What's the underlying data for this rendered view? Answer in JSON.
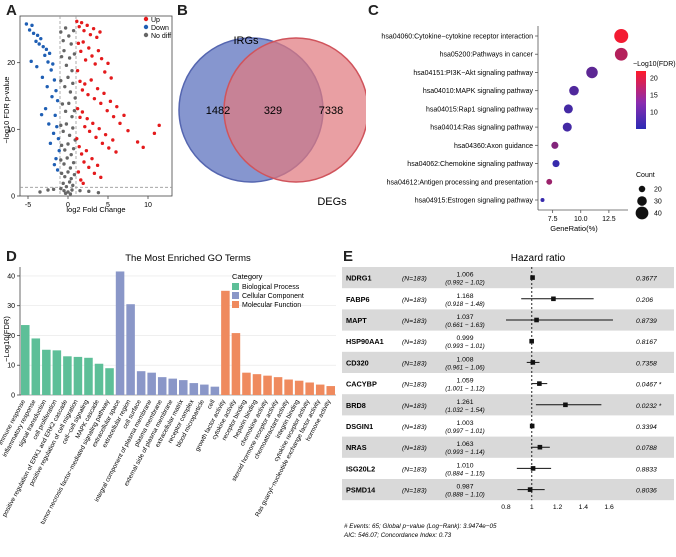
{
  "panels": {
    "a": "A",
    "b": "B",
    "c": "C",
    "d": "D",
    "e": "E"
  },
  "chart_data": [
    {
      "type": "scatter",
      "panel": "A",
      "xlabel": "log2 Fold Change",
      "ylabel": "−log10 FDR p-value",
      "xlim": [
        -6,
        13
      ],
      "ylim": [
        0,
        27
      ],
      "xticks": [
        "-5",
        "0",
        "5",
        "10"
      ],
      "yticks": [
        "0",
        "10",
        "20"
      ],
      "legend": {
        "position": "top-right",
        "entries": [
          {
            "name": "Up",
            "color": "#e41a1c"
          },
          {
            "name": "Down",
            "color": "#1f5fb4"
          },
          {
            "name": "No diff",
            "color": "#666666"
          }
        ]
      },
      "thresholds": {
        "x": [
          -1,
          1
        ],
        "y": 1.3
      },
      "points_down": [
        [
          -5.2,
          25.8
        ],
        [
          -4.8,
          24.9
        ],
        [
          -4.5,
          25.6
        ],
        [
          -4.3,
          24.4
        ],
        [
          -4.0,
          23.2
        ],
        [
          -3.8,
          24.1
        ],
        [
          -3.6,
          22.8
        ],
        [
          -3.4,
          23.6
        ],
        [
          -3.1,
          22.4
        ],
        [
          -2.9,
          21.1
        ],
        [
          -2.7,
          22.0
        ],
        [
          -2.5,
          20.1
        ],
        [
          -2.3,
          21.4
        ],
        [
          -2.1,
          18.9
        ],
        [
          -1.9,
          19.8
        ],
        [
          -1.7,
          17.4
        ],
        [
          -1.5,
          15.8
        ],
        [
          -1.3,
          14.3
        ],
        [
          -4.6,
          20.2
        ],
        [
          -3.9,
          19.4
        ],
        [
          -3.2,
          17.8
        ],
        [
          -2.6,
          16.4
        ],
        [
          -2.0,
          14.9
        ],
        [
          -1.6,
          12.1
        ],
        [
          -1.4,
          10.4
        ],
        [
          -1.2,
          8.6
        ],
        [
          -2.8,
          13.1
        ],
        [
          -3.3,
          12.2
        ],
        [
          -1.8,
          9.4
        ],
        [
          -1.1,
          6.8
        ],
        [
          -2.2,
          7.9
        ],
        [
          -1.5,
          5.6
        ],
        [
          -1.3,
          3.9
        ],
        [
          -1.7,
          4.7
        ],
        [
          -2.4,
          10.8
        ]
      ],
      "points_up": [
        [
          1.1,
          26.2
        ],
        [
          1.4,
          25.4
        ],
        [
          1.7,
          26.0
        ],
        [
          2.0,
          24.8
        ],
        [
          2.4,
          25.6
        ],
        [
          2.8,
          24.2
        ],
        [
          3.2,
          25.1
        ],
        [
          3.6,
          23.8
        ],
        [
          4.0,
          24.6
        ],
        [
          1.3,
          22.9
        ],
        [
          1.6,
          21.7
        ],
        [
          1.9,
          23.1
        ],
        [
          2.2,
          20.4
        ],
        [
          2.6,
          22.2
        ],
        [
          3.0,
          21.0
        ],
        [
          3.4,
          19.8
        ],
        [
          3.8,
          21.8
        ],
        [
          4.2,
          20.6
        ],
        [
          4.6,
          18.6
        ],
        [
          5.0,
          19.9
        ],
        [
          5.4,
          17.7
        ],
        [
          1.2,
          18.8
        ],
        [
          1.5,
          17.2
        ],
        [
          1.8,
          15.9
        ],
        [
          2.1,
          16.8
        ],
        [
          2.5,
          15.2
        ],
        [
          2.9,
          17.4
        ],
        [
          3.3,
          14.6
        ],
        [
          3.7,
          16.1
        ],
        [
          4.1,
          13.9
        ],
        [
          4.5,
          15.4
        ],
        [
          4.9,
          12.8
        ],
        [
          5.3,
          14.2
        ],
        [
          5.7,
          11.9
        ],
        [
          6.1,
          13.4
        ],
        [
          6.5,
          10.9
        ],
        [
          7.0,
          12.1
        ],
        [
          7.5,
          9.8
        ],
        [
          1.2,
          13.1
        ],
        [
          1.5,
          11.8
        ],
        [
          1.8,
          12.6
        ],
        [
          2.1,
          10.4
        ],
        [
          2.4,
          11.6
        ],
        [
          2.7,
          9.7
        ],
        [
          3.1,
          10.9
        ],
        [
          3.5,
          8.8
        ],
        [
          3.9,
          10.1
        ],
        [
          4.3,
          7.9
        ],
        [
          4.7,
          9.2
        ],
        [
          5.1,
          7.2
        ],
        [
          5.6,
          8.4
        ],
        [
          6.0,
          6.6
        ],
        [
          1.1,
          8.6
        ],
        [
          1.4,
          7.4
        ],
        [
          1.7,
          6.3
        ],
        [
          2.0,
          5.1
        ],
        [
          2.3,
          6.8
        ],
        [
          2.6,
          4.3
        ],
        [
          3.0,
          5.6
        ],
        [
          3.3,
          3.4
        ],
        [
          3.7,
          4.6
        ],
        [
          4.1,
          2.8
        ],
        [
          1.3,
          3.6
        ],
        [
          1.6,
          2.4
        ],
        [
          1.9,
          1.9
        ],
        [
          10.8,
          9.4
        ],
        [
          11.4,
          10.6
        ],
        [
          8.7,
          8.1
        ],
        [
          9.4,
          7.3
        ]
      ],
      "points_nodiff": [
        [
          -0.9,
          24.6
        ],
        [
          -0.6,
          23.3
        ],
        [
          -0.3,
          25.2
        ],
        [
          0.1,
          24.0
        ],
        [
          0.4,
          22.8
        ],
        [
          0.7,
          24.8
        ],
        [
          -0.8,
          20.9
        ],
        [
          -0.5,
          21.8
        ],
        [
          -0.2,
          19.6
        ],
        [
          0.2,
          20.7
        ],
        [
          0.5,
          18.8
        ],
        [
          0.8,
          21.3
        ],
        [
          -0.9,
          17.3
        ],
        [
          -0.4,
          16.4
        ],
        [
          0.0,
          17.8
        ],
        [
          0.3,
          15.6
        ],
        [
          0.6,
          16.9
        ],
        [
          0.9,
          14.7
        ],
        [
          -0.7,
          13.8
        ],
        [
          -0.3,
          12.7
        ],
        [
          0.1,
          13.9
        ],
        [
          0.5,
          11.9
        ],
        [
          0.8,
          12.8
        ],
        [
          -0.9,
          10.6
        ],
        [
          -0.6,
          9.7
        ],
        [
          -0.2,
          10.8
        ],
        [
          0.2,
          9.1
        ],
        [
          0.6,
          10.2
        ],
        [
          0.9,
          8.4
        ],
        [
          -0.8,
          7.6
        ],
        [
          -0.4,
          6.9
        ],
        [
          0.0,
          7.8
        ],
        [
          0.4,
          6.2
        ],
        [
          0.7,
          7.1
        ],
        [
          -0.9,
          5.4
        ],
        [
          -0.5,
          4.8
        ],
        [
          -0.1,
          5.7
        ],
        [
          0.3,
          4.2
        ],
        [
          0.7,
          5.0
        ],
        [
          -0.8,
          3.4
        ],
        [
          -0.4,
          2.9
        ],
        [
          0.0,
          3.6
        ],
        [
          0.4,
          2.6
        ],
        [
          0.8,
          3.2
        ],
        [
          -0.6,
          1.9
        ],
        [
          -0.2,
          1.4
        ],
        [
          0.2,
          2.1
        ],
        [
          0.6,
          1.6
        ],
        [
          -0.9,
          1.1
        ],
        [
          -0.5,
          0.8
        ],
        [
          0.0,
          0.6
        ],
        [
          0.5,
          0.9
        ],
        [
          -0.3,
          0.4
        ],
        [
          0.3,
          0.3
        ],
        [
          -2.5,
          0.9
        ],
        [
          -3.5,
          0.6
        ],
        [
          -1.8,
          1.0
        ],
        [
          1.5,
          0.8
        ],
        [
          2.6,
          0.7
        ],
        [
          3.8,
          0.5
        ]
      ]
    },
    {
      "type": "venn",
      "panel": "B",
      "sets": [
        {
          "name": "IRGs",
          "only": 1482,
          "color": "#6b7fc4"
        },
        {
          "name": "DEGs",
          "only": 7338,
          "color": "#e07a7f"
        }
      ],
      "overlap": 329
    },
    {
      "type": "scatter",
      "panel": "C",
      "xlabel": "GeneRatio(%)",
      "xlim": [
        6.2,
        14.2
      ],
      "xticks": [
        7.5,
        10.0,
        12.5
      ],
      "tick_labels": [
        "7.5",
        "10.0",
        "12.5"
      ],
      "color_legend": {
        "title": "−Log10(FDR)",
        "ticks": [
          "20",
          "15",
          "10"
        ],
        "min": 5,
        "max": 22
      },
      "size_legend": {
        "title": "Count",
        "values": [
          20,
          30,
          40
        ]
      },
      "pathways": [
        {
          "label": "hsa04060:Cytokine−cytokine receptor interaction",
          "ratio": 13.6,
          "fdr": 21,
          "count": 44
        },
        {
          "label": "hsa05200:Pathways in cancer",
          "ratio": 13.6,
          "fdr": 16,
          "count": 40
        },
        {
          "label": "hsa04151:PI3K−Akt signaling pathway",
          "ratio": 11.0,
          "fdr": 9,
          "count": 36
        },
        {
          "label": "hsa04010:MAPK signaling pathway",
          "ratio": 9.4,
          "fdr": 8,
          "count": 30
        },
        {
          "label": "hsa04015:Rap1 signaling pathway",
          "ratio": 8.9,
          "fdr": 7,
          "count": 28
        },
        {
          "label": "hsa04014:Ras signaling pathway",
          "ratio": 8.8,
          "fdr": 7,
          "count": 28
        },
        {
          "label": "hsa04360:Axon guidance",
          "ratio": 7.7,
          "fdr": 12,
          "count": 22
        },
        {
          "label": "hsa04062:Chemokine signaling pathway",
          "ratio": 7.8,
          "fdr": 6,
          "count": 22
        },
        {
          "label": "hsa04612:Antigen processing and presentation",
          "ratio": 7.2,
          "fdr": 14,
          "count": 18
        },
        {
          "label": "hsa04915:Estrogen signaling pathway",
          "ratio": 6.6,
          "fdr": 6,
          "count": 12
        }
      ]
    },
    {
      "type": "bar",
      "panel": "D",
      "title": "The Most Enriched GO Terms",
      "ylabel": "−Log10(FDR)",
      "ylim": [
        0,
        43
      ],
      "yticks": [
        0,
        10,
        20,
        30,
        40
      ],
      "legend": {
        "title": "Category",
        "position": "top-right",
        "entries": [
          {
            "name": "Biological Process",
            "color": "#5dbf98"
          },
          {
            "name": "Cellular Component",
            "color": "#8a97c8"
          },
          {
            "name": "Molecular Function",
            "color": "#ef8a5e"
          }
        ]
      },
      "categories": [
        "immune response",
        "inflammatory response",
        "signal transduction",
        "cell proliferation",
        "positive regulation of ERK1 and ERK2 cascade",
        "positive regulation of cell migration",
        "cell−cell signaling",
        "MAPK cascade",
        "tumor necrosis factor−mediated signaling pathway",
        "extracellular space",
        "extracellular region",
        "cell surface",
        "integral component of plasma membrane",
        "plasma membrane",
        "external side of plasma membrane",
        "extracellular matrix",
        "receptor complex",
        "blood microparticle",
        "cell",
        "growth factor activity",
        "cytokine activity",
        "receptor binding",
        "heparin binding",
        "chemokine activity",
        "steroid hormone receptor activity",
        "chemoattractant activity",
        "integrin binding",
        "cytokine receptor activity",
        "Ras guanyl−nucleotide exchange factor activity",
        "hormone activity"
      ],
      "values": [
        23.5,
        19.0,
        15.2,
        15.0,
        13.0,
        12.8,
        12.5,
        10.5,
        9.0,
        41.5,
        30.5,
        8.0,
        7.5,
        6.0,
        5.5,
        5.0,
        4.0,
        3.5,
        2.8,
        35.0,
        20.8,
        7.5,
        7.0,
        6.5,
        6.0,
        5.2,
        4.8,
        4.2,
        3.5,
        3.0
      ],
      "groups": [
        0,
        0,
        0,
        0,
        0,
        0,
        0,
        0,
        0,
        1,
        1,
        1,
        1,
        1,
        1,
        1,
        1,
        1,
        1,
        2,
        2,
        2,
        2,
        2,
        2,
        2,
        2,
        2,
        2,
        2
      ]
    },
    {
      "type": "forest",
      "panel": "E",
      "title": "Hazard ratio",
      "xlim": [
        0.8,
        1.7
      ],
      "xticks": [
        "0.8",
        "1",
        "1.2",
        "1.4",
        "1.6"
      ],
      "reference": 1,
      "rows": [
        {
          "gene": "NDRG1",
          "n": "(N=183)",
          "hr": "1.006",
          "ci": "(0.992 − 1.02)",
          "p": "0.3677",
          "est": 1.006,
          "lo": 0.992,
          "hi": 1.02
        },
        {
          "gene": "FABP6",
          "n": "(N=183)",
          "hr": "1.168",
          "ci": "(0.918 − 1.48)",
          "p": "0.206",
          "est": 1.168,
          "lo": 0.918,
          "hi": 1.48
        },
        {
          "gene": "MAPT",
          "n": "(N=183)",
          "hr": "1.037",
          "ci": "(0.661 − 1.63)",
          "p": "0.8739",
          "est": 1.037,
          "lo": 0.661,
          "hi": 1.63
        },
        {
          "gene": "HSP90AA1",
          "n": "(N=183)",
          "hr": "0.999",
          "ci": "(0.993 − 1.01)",
          "p": "0.8167",
          "est": 0.999,
          "lo": 0.993,
          "hi": 1.01
        },
        {
          "gene": "CD320",
          "n": "(N=183)",
          "hr": "1.008",
          "ci": "(0.961 − 1.06)",
          "p": "0.7358",
          "est": 1.008,
          "lo": 0.961,
          "hi": 1.06
        },
        {
          "gene": "CACYBP",
          "n": "(N=183)",
          "hr": "1.059",
          "ci": "(1.001 − 1.12)",
          "p": "0.0467 *",
          "est": 1.059,
          "lo": 1.001,
          "hi": 1.12
        },
        {
          "gene": "BRD8",
          "n": "(N=183)",
          "hr": "1.261",
          "ci": "(1.032 − 1.54)",
          "p": "0.0232 *",
          "est": 1.261,
          "lo": 1.032,
          "hi": 1.54
        },
        {
          "gene": "DSGIN1",
          "n": "(N=183)",
          "hr": "1.003",
          "ci": "(0.997 − 1.01)",
          "p": "0.3394",
          "est": 1.003,
          "lo": 0.997,
          "hi": 1.01
        },
        {
          "gene": "NRAS",
          "n": "(N=183)",
          "hr": "1.063",
          "ci": "(0.993 − 1.14)",
          "p": "0.0788",
          "est": 1.063,
          "lo": 0.993,
          "hi": 1.14
        },
        {
          "gene": "ISG20L2",
          "n": "(N=183)",
          "hr": "1.010",
          "ci": "(0.884 − 1.15)",
          "p": "0.8833",
          "est": 1.01,
          "lo": 0.884,
          "hi": 1.15
        },
        {
          "gene": "PSMD14",
          "n": "(N=183)",
          "hr": "0.987",
          "ci": "(0.888 − 1.10)",
          "p": "0.8036",
          "est": 0.987,
          "lo": 0.888,
          "hi": 1.1
        }
      ],
      "footer1": "# Events: 65; Global p−value (Log−Rank): 3.9474e−05",
      "footer2": "AIC: 546.07; Concordance Index: 0.73"
    }
  ]
}
